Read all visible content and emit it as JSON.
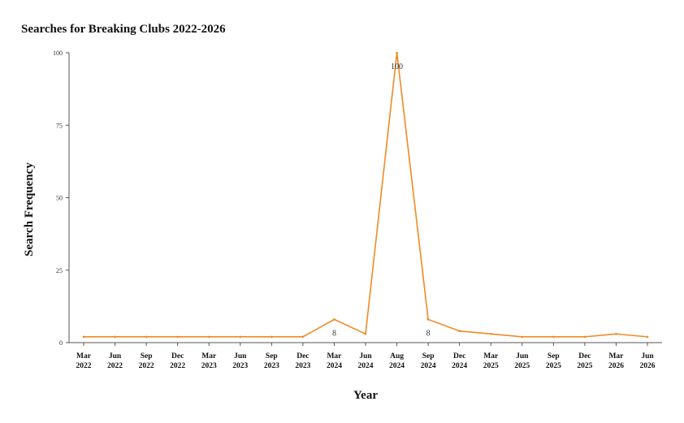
{
  "chart_data": {
    "type": "line",
    "title": "Searches for Breaking Clubs 2022-2026",
    "xlabel": "Year",
    "ylabel": "Search Frequency",
    "ylim": [
      0,
      100
    ],
    "yticks": [
      "0",
      "25",
      "50",
      "75",
      "100"
    ],
    "categories": [
      [
        "Mar",
        "2022"
      ],
      [
        "Jun",
        "2022"
      ],
      [
        "Sep",
        "2022"
      ],
      [
        "Dec",
        "2022"
      ],
      [
        "Mar",
        "2023"
      ],
      [
        "Jun",
        "2023"
      ],
      [
        "Sep",
        "2023"
      ],
      [
        "Dec",
        "2023"
      ],
      [
        "Mar",
        "2024"
      ],
      [
        "Jun",
        "2024"
      ],
      [
        "Aug",
        "2024"
      ],
      [
        "Sep",
        "2024"
      ],
      [
        "Dec",
        "2024"
      ],
      [
        "Mar",
        "2025"
      ],
      [
        "Jun",
        "2025"
      ],
      [
        "Sep",
        "2025"
      ],
      [
        "Dec",
        "2025"
      ],
      [
        "Mar",
        "2026"
      ],
      [
        "Jun",
        "2026"
      ]
    ],
    "series": [
      {
        "values": [
          2,
          2,
          2,
          2,
          2,
          2,
          2,
          2,
          8,
          3,
          100,
          8,
          4,
          3,
          2,
          2,
          2,
          3,
          2
        ],
        "color": "#f08a24"
      }
    ],
    "data_labels": [
      {
        "index": 8,
        "text": "8"
      },
      {
        "index": 10,
        "text": "100"
      },
      {
        "index": 11,
        "text": "8"
      }
    ],
    "grid": false,
    "legend": "none"
  }
}
